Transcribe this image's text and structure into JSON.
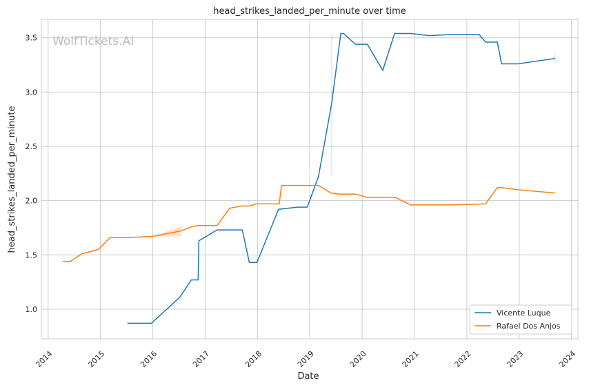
{
  "chart_data": {
    "type": "line",
    "title": "head_strikes_landed_per_minute over time",
    "xlabel": "Date",
    "ylabel": "head_strikes_landed_per_minute",
    "watermark": "WolfTickets.AI",
    "xlim": [
      "2013-11-15",
      "2024-02-15"
    ],
    "ylim": [
      0.726,
      3.67
    ],
    "xticks": [
      "2014",
      "2015",
      "2016",
      "2017",
      "2018",
      "2019",
      "2020",
      "2021",
      "2022",
      "2023",
      "2024"
    ],
    "yticks": [
      "1.0",
      "1.5",
      "2.0",
      "2.5",
      "3.0",
      "3.5"
    ],
    "grid": true,
    "legend": "lower-right",
    "series": [
      {
        "name": "Vicente Luque",
        "color": "#1f77b4",
        "x": [
          "2015-07-08",
          "2015-12-22",
          "2016-07-08",
          "2016-09-26",
          "2016-11-13",
          "2016-11-18",
          "2017-03-25",
          "2017-09-17",
          "2017-11-05",
          "2017-12-28",
          "2018-05-28",
          "2018-10-07",
          "2018-12-14",
          "2019-03-02",
          "2019-06-03",
          "2019-08-05",
          "2019-08-24",
          "2019-11-15",
          "2020-02-06",
          "2020-05-24",
          "2020-08-15",
          "2020-12-05",
          "2021-04-15",
          "2021-09-14",
          "2022-03-28",
          "2022-05-11",
          "2022-08-02",
          "2022-08-31",
          "2022-12-25",
          "2023-09-09"
        ],
        "y": [
          0.87,
          0.87,
          1.11,
          1.27,
          1.27,
          1.63,
          1.73,
          1.73,
          1.43,
          1.43,
          1.92,
          1.94,
          1.94,
          2.22,
          2.9,
          3.54,
          3.54,
          3.44,
          3.44,
          3.2,
          3.54,
          3.54,
          3.52,
          3.53,
          3.53,
          3.46,
          3.46,
          3.26,
          3.26,
          3.31
        ],
        "ci": [
          {
            "x": "2019-06-03",
            "low": 2.23,
            "high": 3.54
          },
          {
            "x": "2023-09-09",
            "low": 3.27,
            "high": 3.36
          }
        ]
      },
      {
        "name": "Rafael Dos Anjos",
        "color": "#ff7f0e",
        "x": [
          "2014-04-12",
          "2014-06-05",
          "2014-08-22",
          "2014-12-17",
          "2015-03-10",
          "2015-07-08",
          "2015-12-27",
          "2016-07-14",
          "2016-10-01",
          "2016-11-09",
          "2017-03-25",
          "2017-06-21",
          "2017-09-12",
          "2017-11-05",
          "2017-12-23",
          "2018-06-02",
          "2018-06-17",
          "2019-01-12",
          "2019-03-02",
          "2019-05-28",
          "2019-07-26",
          "2019-11-15",
          "2020-02-06",
          "2020-08-20",
          "2020-12-05",
          "2021-09-14",
          "2022-05-11",
          "2022-08-02",
          "2022-08-31",
          "2022-12-25",
          "2023-09-09"
        ],
        "y": [
          1.44,
          1.44,
          1.51,
          1.55,
          1.66,
          1.66,
          1.67,
          1.72,
          1.76,
          1.77,
          1.77,
          1.93,
          1.95,
          1.95,
          1.97,
          1.97,
          2.14,
          2.14,
          2.14,
          2.07,
          2.06,
          2.06,
          2.03,
          2.03,
          1.96,
          1.96,
          1.97,
          2.12,
          2.12,
          2.1,
          2.07
        ],
        "band": {
          "x": [
            "2015-12-27",
            "2016-07-14"
          ],
          "low": [
            1.67,
            1.67
          ],
          "high": [
            1.67,
            1.76
          ]
        }
      }
    ]
  }
}
